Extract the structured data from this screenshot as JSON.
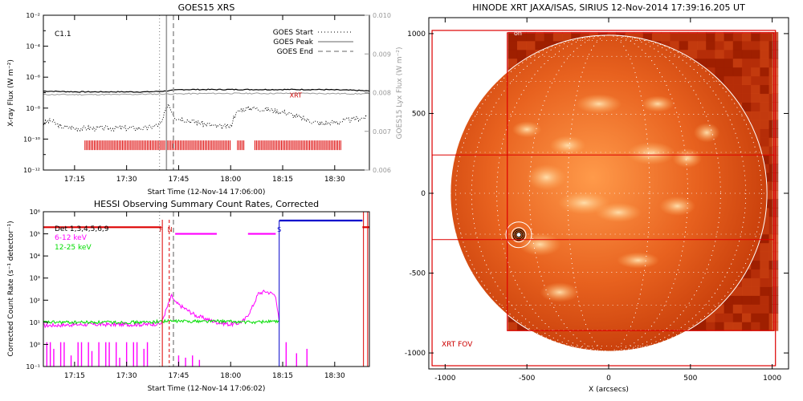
{
  "chart_data": [
    {
      "type": "line",
      "title": "GOES15 XRS",
      "xlabel": "Start Time (12-Nov-14 17:06:00)",
      "ylabel": "X-ray Flux (W m⁻²)",
      "y2label": "GOES15 Lyx Flux (W m⁻²)",
      "x_tick_labels": [
        "17:15",
        "17:30",
        "17:45",
        "18:00",
        "18:15",
        "18:30"
      ],
      "x_ticks_minutes": [
        9,
        24,
        39,
        54,
        69,
        84
      ],
      "xlim_minutes": [
        0,
        94
      ],
      "ylim_log10": [
        -12,
        -2
      ],
      "y_tick_labels": [
        "10⁻¹²",
        "10⁻¹⁰",
        "10⁻⁸",
        "10⁻⁶",
        "10⁻⁴",
        "10⁻²"
      ],
      "y_tick_values_log10": [
        -12,
        -10,
        -8,
        -6,
        -4,
        -2
      ],
      "y2lim": [
        0.006,
        0.01
      ],
      "y2_tick_labels": [
        "0.006",
        "0.007",
        "0.008",
        "0.009",
        "0.010"
      ],
      "y2_tick_values": [
        0.006,
        0.007,
        0.008,
        0.009,
        0.01
      ],
      "flare_class": "C1.1",
      "legend": [
        {
          "label": "GOES Start",
          "style": "dotted"
        },
        {
          "label": "GOES Peak",
          "style": "solid"
        },
        {
          "label": "GOES End",
          "style": "dashed"
        }
      ],
      "legend_position": "top-right",
      "goes_start_minute": 33.5,
      "goes_peak_minute": 35.5,
      "goes_end_minute": 37.5,
      "series": [
        {
          "name": "",
          "style": "solid",
          "color": "#000000",
          "x": [
            0,
            10,
            20,
            30,
            35,
            40,
            50,
            60,
            70,
            80,
            90,
            94
          ],
          "y_log10": [
            -6.9,
            -6.95,
            -6.95,
            -6.95,
            -6.9,
            -6.8,
            -6.8,
            -6.8,
            -6.8,
            -6.8,
            -6.85,
            -6.9
          ]
        },
        {
          "name": "",
          "style": "solid",
          "color": "#999999",
          "x": [
            0,
            10,
            20,
            30,
            40,
            50,
            60,
            70,
            80,
            90,
            94
          ],
          "y2": [
            0.00795,
            0.00795,
            0.00795,
            0.00796,
            0.00797,
            0.00798,
            0.00798,
            0.00798,
            0.00798,
            0.00797,
            0.00797
          ]
        },
        {
          "name": "",
          "style": "dotted",
          "color": "#000000",
          "x": [
            0,
            2,
            5,
            10,
            20,
            30,
            34,
            36,
            38,
            40,
            44,
            50,
            54,
            55,
            57,
            60,
            65,
            70,
            75,
            80,
            85,
            90,
            93
          ],
          "y_log10": [
            -9.0,
            -8.8,
            -9.2,
            -9.3,
            -9.3,
            -9.3,
            -9.0,
            -7.7,
            -8.6,
            -8.7,
            -8.9,
            -9.2,
            -9.2,
            -8.5,
            -8.1,
            -8.0,
            -8.1,
            -8.3,
            -8.7,
            -9.0,
            -8.9,
            -8.7,
            -8.6
          ]
        }
      ],
      "annotations": [
        {
          "text": "XRT",
          "color": "#cc0000",
          "x": 71,
          "y_log10": -7.3
        }
      ],
      "xrt_coverage": {
        "color": "#dd0000",
        "y_log10": -10.4,
        "intervals_minutes": [
          [
            12,
            54
          ],
          [
            56,
            58
          ],
          [
            61,
            86
          ]
        ]
      }
    },
    {
      "type": "line",
      "title": "HESSI Observing Summary Count Rates, Corrected",
      "xlabel": "Start Time (12-Nov-14 17:06:02)",
      "ylabel": "Corrected Count Rate (s⁻¹ detector⁻¹)",
      "x_tick_labels": [
        "17:15",
        "17:30",
        "17:45",
        "18:00",
        "18:15",
        "18:30"
      ],
      "x_ticks_minutes": [
        9,
        24,
        39,
        54,
        69,
        84
      ],
      "xlim_minutes": [
        0,
        94
      ],
      "ylim_log10": [
        -1,
        6
      ],
      "y_tick_labels": [
        "10⁻¹",
        "10⁰",
        "10¹",
        "10²",
        "10³",
        "10⁴",
        "10⁵",
        "10⁶"
      ],
      "y_tick_values_log10": [
        -1,
        0,
        1,
        2,
        3,
        4,
        5,
        6
      ],
      "legend": [
        {
          "label": "Det 1,3,4,5,6,9",
          "color": "#000000"
        },
        {
          "label": "6-12 keV",
          "color": "#ff00ff"
        },
        {
          "label": "12-25 keV",
          "color": "#00dd00"
        }
      ],
      "legend_position": "top-left",
      "state_labels": [
        {
          "text": "F",
          "color": "#cc0000",
          "x": 34
        },
        {
          "text": "N",
          "color": "#cc0000",
          "x": 36.5
        },
        {
          "text": "S",
          "color": "#0000cc",
          "x": 68
        }
      ],
      "goes_start_minute": 33.5,
      "goes_peak_minute": 35.5,
      "goes_end_minute": 37.5,
      "attenuator_segments": [
        {
          "color": "#dd0000",
          "y_log10": 5.3,
          "x": [
            0,
            34
          ]
        },
        {
          "color": "#ff00ff",
          "y_log10": 5.0,
          "x": [
            38,
            50
          ]
        },
        {
          "color": "#ff00ff",
          "y_log10": 5.0,
          "x": [
            59,
            67
          ]
        },
        {
          "color": "#0000cc",
          "y_log10": 5.6,
          "x": [
            68,
            92
          ]
        },
        {
          "color": "#dd0000",
          "y_log10": 5.3,
          "x": [
            92,
            94
          ]
        }
      ],
      "series": [
        {
          "name": "6-12 keV",
          "color": "#ff00ff",
          "x": [
            0,
            10,
            20,
            30,
            34,
            35,
            36,
            37,
            38,
            40,
            42,
            44,
            46,
            48,
            50,
            54,
            56,
            58,
            60,
            62,
            64,
            66,
            67,
            68
          ],
          "y_log10": [
            0.85,
            0.9,
            0.9,
            0.9,
            0.95,
            1.4,
            1.8,
            2.2,
            1.9,
            1.7,
            1.5,
            1.3,
            1.2,
            1.1,
            1.0,
            0.9,
            0.95,
            1.1,
            1.6,
            2.3,
            2.4,
            2.3,
            2.2,
            1.0
          ]
        },
        {
          "name": "12-25 keV",
          "color": "#00dd00",
          "x": [
            0,
            10,
            20,
            30,
            35,
            40,
            50,
            60,
            66,
            68
          ],
          "y_log10": [
            1.0,
            1.0,
            1.0,
            1.0,
            1.05,
            1.05,
            1.05,
            1.0,
            1.05,
            1.0
          ]
        }
      ],
      "magenta_spikes_x": [
        1,
        2,
        3,
        5,
        6,
        8,
        10,
        11,
        13,
        14,
        16,
        18,
        19,
        21,
        22,
        24,
        26,
        27,
        29,
        30,
        39,
        41,
        43,
        45,
        70,
        73,
        76
      ],
      "magenta_spike_heights_log10": [
        0.1,
        0.1,
        -0.2,
        0.1,
        0.1,
        -0.5,
        0.1,
        0.1,
        0.1,
        -0.3,
        0.1,
        0.1,
        0.1,
        0.1,
        -0.6,
        0.1,
        0.1,
        0.1,
        -0.2,
        0.1,
        -0.5,
        -0.6,
        -0.5,
        -0.7,
        0.1,
        -0.4,
        -0.2
      ]
    },
    {
      "type": "heatmap",
      "title": "HINODE XRT JAXA/ISAS, SIRIUS 12-Nov-2014 17:39:16.205 UT",
      "xlabel": "X (arcsecs)",
      "ylabel": "",
      "xlim": [
        -1100,
        1100
      ],
      "ylim": [
        -1100,
        1100
      ],
      "x_tick_labels": [
        "-1000",
        "-500",
        "0",
        "500",
        "1000"
      ],
      "x_tick_values": [
        -1000,
        -500,
        0,
        500,
        1000
      ],
      "y_tick_labels": [
        "-1000",
        "-500",
        "0",
        "500",
        "1000"
      ],
      "y_tick_values": [
        -1000,
        -500,
        0,
        500,
        1000
      ],
      "image_extent": {
        "x": [
          -615,
          1000
        ],
        "y": [
          -860,
          1000
        ]
      },
      "solar_limb_radius": 968,
      "fov_label": "XRT FOV",
      "corner_label": "on",
      "fov_rect": {
        "x": [
          -1080,
          1020
        ],
        "y": [
          -1080,
          1020
        ]
      },
      "fov_rect_inner": {
        "x": [
          -620,
          1010
        ],
        "y": [
          -860,
          1005
        ]
      },
      "highlight_box": {
        "x": [
          -1080,
          1010
        ],
        "y": [
          -290,
          240
        ]
      },
      "flare_contour_center": {
        "x": -550,
        "y": -260
      },
      "colors": {
        "sun_dark": "#a82400",
        "sun_mid": "#e0581c",
        "sun_bright": "#ffd7a0",
        "box": "#dd0000"
      }
    }
  ]
}
